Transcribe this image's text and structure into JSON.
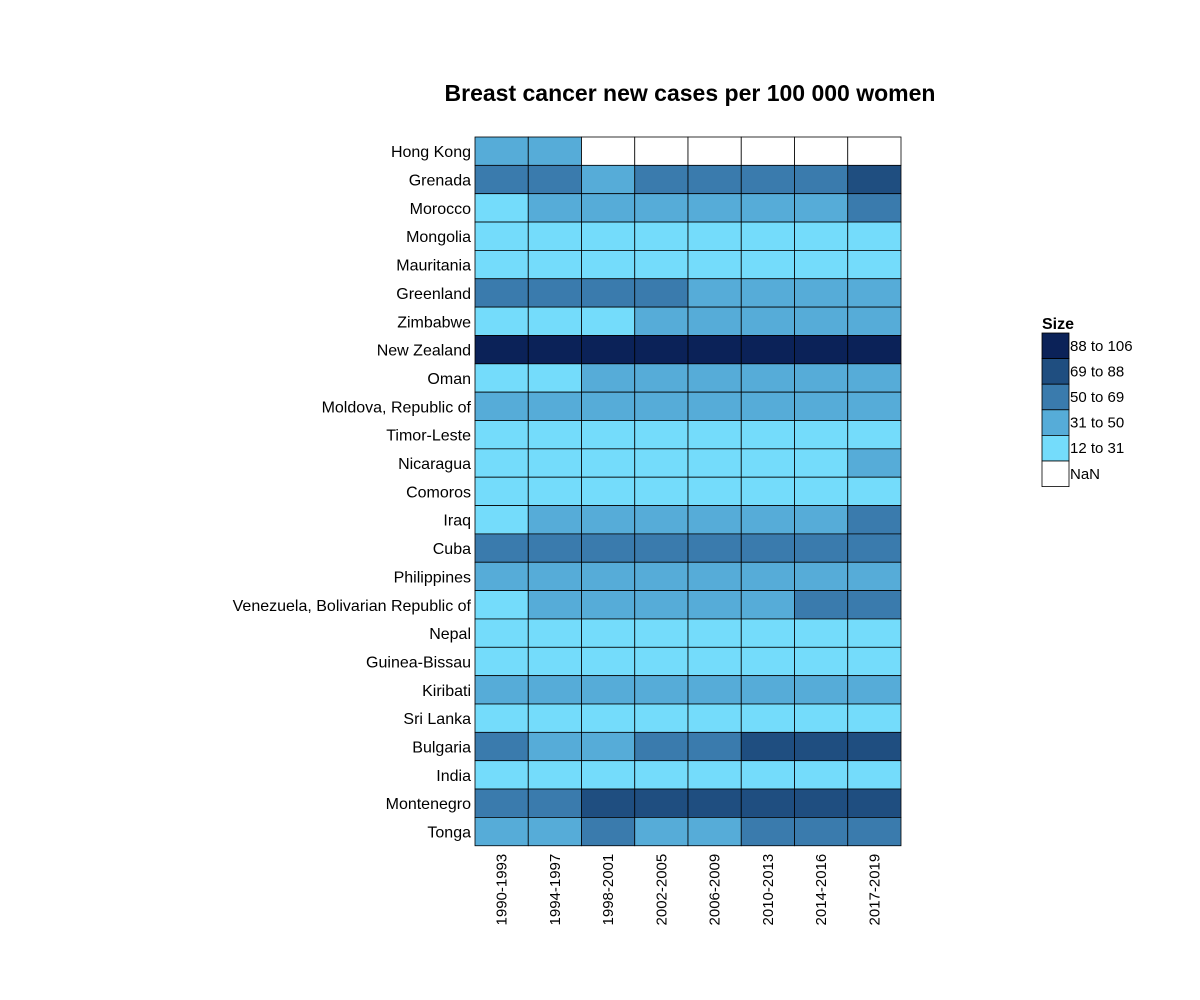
{
  "chart_data": {
    "type": "heatmap",
    "title": "Breast cancer new cases per 100 000 women",
    "xlabel": "",
    "ylabel": "",
    "columns": [
      "1990-1993",
      "1994-1997",
      "1998-2001",
      "2002-2005",
      "2006-2009",
      "2010-2013",
      "2014-2016",
      "2017-2019"
    ],
    "rows": [
      {
        "label": "Hong Kong",
        "bins": [
          "31 to 50",
          "31 to 50",
          "NaN",
          "NaN",
          "NaN",
          "NaN",
          "NaN",
          "NaN"
        ]
      },
      {
        "label": "Grenada",
        "bins": [
          "50 to 69",
          "50 to 69",
          "31 to 50",
          "50 to 69",
          "50 to 69",
          "50 to 69",
          "50 to 69",
          "69 to 88"
        ]
      },
      {
        "label": "Morocco",
        "bins": [
          "12 to 31",
          "31 to 50",
          "31 to 50",
          "31 to 50",
          "31 to 50",
          "31 to 50",
          "31 to 50",
          "50 to 69"
        ]
      },
      {
        "label": "Mongolia",
        "bins": [
          "12 to 31",
          "12 to 31",
          "12 to 31",
          "12 to 31",
          "12 to 31",
          "12 to 31",
          "12 to 31",
          "12 to 31"
        ]
      },
      {
        "label": "Mauritania",
        "bins": [
          "12 to 31",
          "12 to 31",
          "12 to 31",
          "12 to 31",
          "12 to 31",
          "12 to 31",
          "12 to 31",
          "12 to 31"
        ]
      },
      {
        "label": "Greenland",
        "bins": [
          "50 to 69",
          "50 to 69",
          "50 to 69",
          "50 to 69",
          "31 to 50",
          "31 to 50",
          "31 to 50",
          "31 to 50"
        ]
      },
      {
        "label": "Zimbabwe",
        "bins": [
          "12 to 31",
          "12 to 31",
          "12 to 31",
          "31 to 50",
          "31 to 50",
          "31 to 50",
          "31 to 50",
          "31 to 50"
        ]
      },
      {
        "label": "New Zealand",
        "bins": [
          "88 to 106",
          "88 to 106",
          "88 to 106",
          "88 to 106",
          "88 to 106",
          "88 to 106",
          "88 to 106",
          "88 to 106"
        ]
      },
      {
        "label": "Oman",
        "bins": [
          "12 to 31",
          "12 to 31",
          "31 to 50",
          "31 to 50",
          "31 to 50",
          "31 to 50",
          "31 to 50",
          "31 to 50"
        ]
      },
      {
        "label": "Moldova, Republic of",
        "bins": [
          "31 to 50",
          "31 to 50",
          "31 to 50",
          "31 to 50",
          "31 to 50",
          "31 to 50",
          "31 to 50",
          "31 to 50"
        ]
      },
      {
        "label": "Timor-Leste",
        "bins": [
          "12 to 31",
          "12 to 31",
          "12 to 31",
          "12 to 31",
          "12 to 31",
          "12 to 31",
          "12 to 31",
          "12 to 31"
        ]
      },
      {
        "label": "Nicaragua",
        "bins": [
          "12 to 31",
          "12 to 31",
          "12 to 31",
          "12 to 31",
          "12 to 31",
          "12 to 31",
          "12 to 31",
          "31 to 50"
        ]
      },
      {
        "label": "Comoros",
        "bins": [
          "12 to 31",
          "12 to 31",
          "12 to 31",
          "12 to 31",
          "12 to 31",
          "12 to 31",
          "12 to 31",
          "12 to 31"
        ]
      },
      {
        "label": "Iraq",
        "bins": [
          "12 to 31",
          "31 to 50",
          "31 to 50",
          "31 to 50",
          "31 to 50",
          "31 to 50",
          "31 to 50",
          "50 to 69"
        ]
      },
      {
        "label": "Cuba",
        "bins": [
          "50 to 69",
          "50 to 69",
          "50 to 69",
          "50 to 69",
          "50 to 69",
          "50 to 69",
          "50 to 69",
          "50 to 69"
        ]
      },
      {
        "label": "Philippines",
        "bins": [
          "31 to 50",
          "31 to 50",
          "31 to 50",
          "31 to 50",
          "31 to 50",
          "31 to 50",
          "31 to 50",
          "31 to 50"
        ]
      },
      {
        "label": "Venezuela, Bolivarian Republic of",
        "bins": [
          "12 to 31",
          "31 to 50",
          "31 to 50",
          "31 to 50",
          "31 to 50",
          "31 to 50",
          "50 to 69",
          "50 to 69"
        ]
      },
      {
        "label": "Nepal",
        "bins": [
          "12 to 31",
          "12 to 31",
          "12 to 31",
          "12 to 31",
          "12 to 31",
          "12 to 31",
          "12 to 31",
          "12 to 31"
        ]
      },
      {
        "label": "Guinea-Bissau",
        "bins": [
          "12 to 31",
          "12 to 31",
          "12 to 31",
          "12 to 31",
          "12 to 31",
          "12 to 31",
          "12 to 31",
          "12 to 31"
        ]
      },
      {
        "label": "Kiribati",
        "bins": [
          "31 to 50",
          "31 to 50",
          "31 to 50",
          "31 to 50",
          "31 to 50",
          "31 to 50",
          "31 to 50",
          "31 to 50"
        ]
      },
      {
        "label": "Sri Lanka",
        "bins": [
          "12 to 31",
          "12 to 31",
          "12 to 31",
          "12 to 31",
          "12 to 31",
          "12 to 31",
          "12 to 31",
          "12 to 31"
        ]
      },
      {
        "label": "Bulgaria",
        "bins": [
          "50 to 69",
          "31 to 50",
          "31 to 50",
          "50 to 69",
          "50 to 69",
          "69 to 88",
          "69 to 88",
          "69 to 88"
        ]
      },
      {
        "label": "India",
        "bins": [
          "12 to 31",
          "12 to 31",
          "12 to 31",
          "12 to 31",
          "12 to 31",
          "12 to 31",
          "12 to 31",
          "12 to 31"
        ]
      },
      {
        "label": "Montenegro",
        "bins": [
          "50 to 69",
          "50 to 69",
          "69 to 88",
          "69 to 88",
          "69 to 88",
          "69 to 88",
          "69 to 88",
          "69 to 88"
        ]
      },
      {
        "label": "Tonga",
        "bins": [
          "31 to 50",
          "31 to 50",
          "50 to 69",
          "31 to 50",
          "31 to 50",
          "50 to 69",
          "50 to 69",
          "50 to 69"
        ]
      }
    ],
    "legend": {
      "title": "Size",
      "position": "right",
      "items": [
        {
          "label": "88 to 106",
          "color": "#0b2258"
        },
        {
          "label": "69 to 88",
          "color": "#1f4e80"
        },
        {
          "label": "50 to 69",
          "color": "#3a7bad"
        },
        {
          "label": "31 to 50",
          "color": "#56acd8"
        },
        {
          "label": "12 to 31",
          "color": "#74dcfb"
        },
        {
          "label": "NaN",
          "color": "#ffffff"
        }
      ]
    },
    "grid": false
  }
}
